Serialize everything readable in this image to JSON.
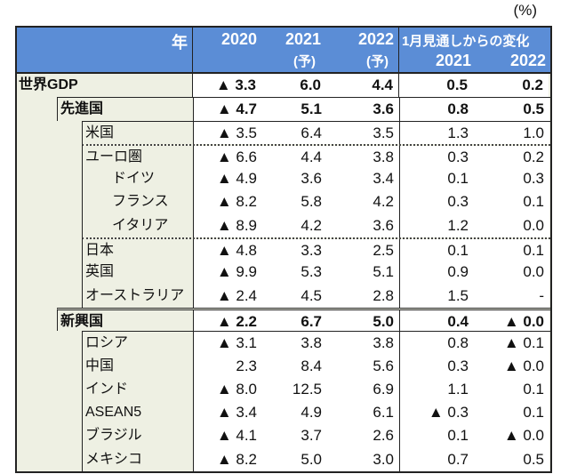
{
  "unit": "(%)",
  "header": {
    "year_label": "年",
    "col_2020": "2020",
    "col_2021": "2021",
    "col_2021_note": "(予)",
    "col_2022": "2022",
    "col_2022_note": "(予)",
    "change_label": "1月見通しからの変化",
    "change_2021": "2021",
    "change_2022": "2022"
  },
  "header_color": "#5b8dd6",
  "rows": [
    {
      "label": "世界GDP",
      "level": 0,
      "bold": true,
      "border": "none",
      "values": [
        "▲ 3.3",
        "6.0",
        "4.4",
        "0.5",
        "0.2"
      ]
    },
    {
      "label": "先進国",
      "level": 1,
      "bold": true,
      "border": "solid",
      "values": [
        "▲ 4.7",
        "5.1",
        "3.6",
        "0.8",
        "0.5"
      ]
    },
    {
      "label": "米国",
      "level": 2,
      "bold": false,
      "border": "solid",
      "values": [
        "▲ 3.5",
        "6.4",
        "3.5",
        "1.3",
        "1.0"
      ]
    },
    {
      "label": "ユーロ圏",
      "level": 2,
      "bold": false,
      "border": "dotted",
      "values": [
        "▲ 6.6",
        "4.4",
        "3.8",
        "0.3",
        "0.2"
      ]
    },
    {
      "label": "ドイツ",
      "level": 3,
      "bold": false,
      "border": "none",
      "values": [
        "▲ 4.9",
        "3.6",
        "3.4",
        "0.1",
        "0.3"
      ]
    },
    {
      "label": "フランス",
      "level": 3,
      "bold": false,
      "border": "none",
      "values": [
        "▲ 8.2",
        "5.8",
        "4.2",
        "0.3",
        "0.1"
      ]
    },
    {
      "label": "イタリア",
      "level": 3,
      "bold": false,
      "border": "none",
      "values": [
        "▲ 8.9",
        "4.2",
        "3.6",
        "1.2",
        "0.0"
      ]
    },
    {
      "label": "日本",
      "level": 2,
      "bold": false,
      "border": "dotted",
      "values": [
        "▲ 4.8",
        "3.3",
        "2.5",
        "0.1",
        "0.1"
      ]
    },
    {
      "label": "英国",
      "level": 2,
      "bold": false,
      "border": "none",
      "values": [
        "▲ 9.9",
        "5.3",
        "5.1",
        "0.9",
        "0.0"
      ]
    },
    {
      "label": "オーストラリア",
      "level": 2,
      "bold": false,
      "border": "none",
      "values": [
        "▲ 2.4",
        "4.5",
        "2.8",
        "1.5",
        "-"
      ]
    },
    {
      "label": "新興国",
      "level": 1,
      "bold": true,
      "border": "double",
      "values": [
        "▲ 2.2",
        "6.7",
        "5.0",
        "0.4",
        "▲ 0.0"
      ]
    },
    {
      "label": "ロシア",
      "level": 2,
      "bold": false,
      "border": "solid",
      "values": [
        "▲ 3.1",
        "3.8",
        "3.8",
        "0.8",
        "▲ 0.1"
      ]
    },
    {
      "label": "中国",
      "level": 2,
      "bold": false,
      "border": "none",
      "values": [
        "2.3",
        "8.4",
        "5.6",
        "0.3",
        "▲ 0.0"
      ]
    },
    {
      "label": "インド",
      "level": 2,
      "bold": false,
      "border": "none",
      "values": [
        "▲ 8.0",
        "12.5",
        "6.9",
        "1.1",
        "0.1"
      ]
    },
    {
      "label": "ASEAN5",
      "level": 2,
      "bold": false,
      "border": "none",
      "values": [
        "▲ 3.4",
        "4.9",
        "6.1",
        "▲ 0.3",
        "0.1"
      ]
    },
    {
      "label": "ブラジル",
      "level": 2,
      "bold": false,
      "border": "none",
      "values": [
        "▲ 4.1",
        "3.7",
        "2.6",
        "0.1",
        "▲ 0.0"
      ]
    },
    {
      "label": "メキシコ",
      "level": 2,
      "bold": false,
      "border": "none",
      "values": [
        "▲ 8.2",
        "5.0",
        "3.0",
        "0.7",
        "0.5"
      ]
    }
  ]
}
